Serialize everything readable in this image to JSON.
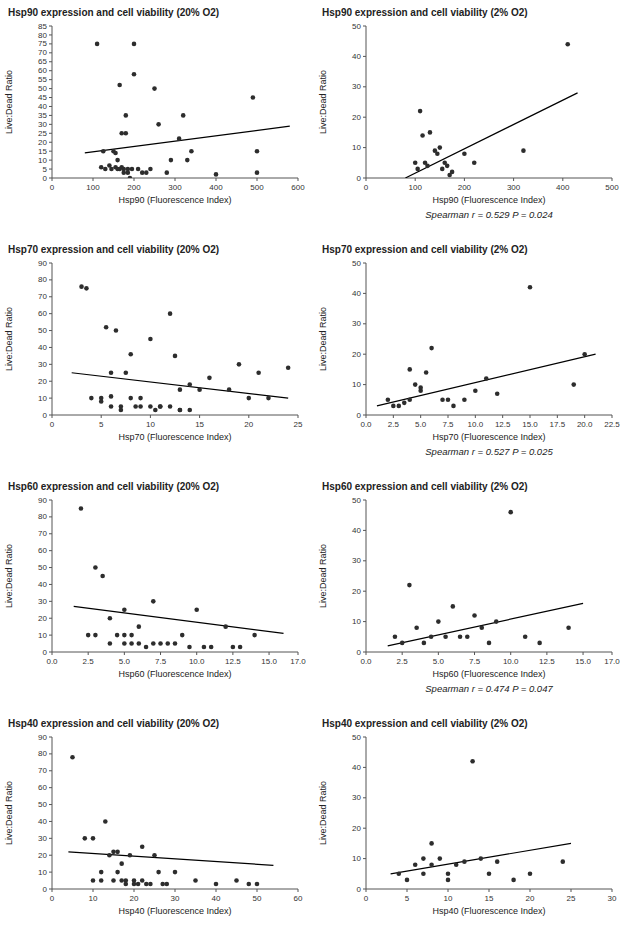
{
  "chart_data": [
    {
      "type": "scatter",
      "title": "Hsp90 expression and cell viability (20% O2)",
      "x_label": "Hsp90 (Fluorescence Index)",
      "y_label": "Live:Dead Ratio",
      "xlim": [
        0,
        600
      ],
      "ylim": [
        0,
        85
      ],
      "xticks": [
        0,
        100,
        200,
        300,
        400,
        500,
        600
      ],
      "yticks": [
        0,
        5,
        10,
        15,
        20,
        25,
        30,
        35,
        40,
        45,
        50,
        55,
        60,
        65,
        70,
        75,
        80,
        85
      ],
      "series": [
        {
          "type": "scatter",
          "color": "#2d2d2d",
          "x": [
            110,
            120,
            125,
            130,
            140,
            145,
            150,
            155,
            155,
            160,
            160,
            165,
            165,
            170,
            170,
            175,
            175,
            180,
            180,
            185,
            185,
            190,
            195,
            200,
            200,
            210,
            220,
            230,
            240,
            250,
            260,
            280,
            290,
            310,
            320,
            330,
            340,
            400,
            490,
            500,
            500
          ],
          "values": [
            75,
            6,
            15,
            5,
            7,
            5,
            15,
            6,
            14,
            5,
            10,
            5,
            52,
            25,
            6,
            5,
            3,
            25,
            35,
            5,
            3,
            0,
            5,
            75,
            58,
            5,
            3,
            3,
            5,
            50,
            30,
            3,
            10,
            22,
            35,
            10,
            15,
            2,
            45,
            15,
            3
          ]
        },
        {
          "type": "line",
          "color": "#000000",
          "x": [
            80,
            580
          ],
          "values": [
            14,
            29
          ]
        }
      ]
    },
    {
      "type": "scatter",
      "title": "Hsp90 expression and cell viability (2% O2)",
      "x_label": "Hsp90 (Fluorescence Index)",
      "y_label": "Live:Dead Ratio",
      "xlim": [
        0,
        500
      ],
      "ylim": [
        0,
        50
      ],
      "xticks": [
        0,
        100,
        200,
        300,
        400,
        500
      ],
      "yticks": [
        0,
        10,
        20,
        30,
        40,
        50
      ],
      "series": [
        {
          "type": "scatter",
          "color": "#2d2d2d",
          "x": [
            100,
            105,
            110,
            115,
            120,
            125,
            130,
            140,
            145,
            150,
            155,
            160,
            165,
            170,
            175,
            200,
            220,
            320,
            410
          ],
          "values": [
            5,
            3,
            22,
            14,
            5,
            4,
            15,
            9,
            8,
            10,
            3,
            5,
            4,
            1,
            2,
            8,
            5,
            9,
            44
          ]
        },
        {
          "type": "line",
          "color": "#000000",
          "x": [
            80,
            430
          ],
          "values": [
            0,
            28
          ]
        }
      ],
      "annotation": "Spearman r = 0.529 P = 0.024"
    },
    {
      "type": "scatter",
      "title": "Hsp70 expression and cell viability (20% O2)",
      "x_label": "Hsp70 (Fluorescence Index)",
      "y_label": "Live:Dead Ratio",
      "xlim": [
        0,
        25
      ],
      "ylim": [
        0,
        90
      ],
      "xticks": [
        0,
        5,
        10,
        15,
        20,
        25
      ],
      "yticks": [
        0,
        10,
        20,
        30,
        40,
        50,
        60,
        70,
        80,
        90
      ],
      "series": [
        {
          "type": "scatter",
          "color": "#2d2d2d",
          "x": [
            3,
            3.5,
            4,
            5,
            5,
            5.5,
            6,
            6,
            6,
            6.5,
            7,
            7,
            7.5,
            8,
            8,
            8.5,
            9,
            9,
            10,
            10,
            10.5,
            11,
            11,
            12,
            12,
            12.5,
            13,
            13,
            13,
            14,
            14,
            15,
            16,
            18,
            19,
            20,
            21,
            22,
            24
          ],
          "values": [
            76,
            75,
            10,
            10,
            8,
            52,
            5,
            11,
            25,
            50,
            5,
            3,
            25,
            10,
            36,
            5,
            10,
            5,
            5,
            45,
            3,
            5,
            5,
            5,
            60,
            35,
            3,
            15,
            3,
            3,
            18,
            15,
            22,
            15,
            30,
            10,
            25,
            10,
            28
          ]
        },
        {
          "type": "line",
          "color": "#000000",
          "x": [
            2,
            24
          ],
          "values": [
            25,
            10
          ]
        }
      ]
    },
    {
      "type": "scatter",
      "title": "Hsp70 expression and cell viability (2% O2)",
      "x_label": "Hsp70 (Fluorescence Index)",
      "y_label": "Live:Dead Ratio",
      "xlim": [
        0,
        22.5
      ],
      "ylim": [
        0,
        50
      ],
      "xticks": [
        {
          "value": 0,
          "label": "0.0"
        },
        2.5,
        {
          "value": 5,
          "label": "5.0"
        },
        7.5,
        {
          "value": 10,
          "label": "10.0"
        },
        12.5,
        {
          "value": 15,
          "label": "15.0"
        },
        17.5,
        {
          "value": 20,
          "label": "20.0"
        },
        22.5
      ],
      "yticks": [
        0,
        10,
        20,
        30,
        40,
        50
      ],
      "series": [
        {
          "type": "scatter",
          "color": "#2d2d2d",
          "x": [
            2,
            2.5,
            3,
            3.5,
            4,
            4,
            4.5,
            5,
            5,
            5.5,
            6,
            7,
            7.5,
            8,
            9,
            10,
            11,
            12,
            15,
            19,
            20
          ],
          "values": [
            5,
            3,
            3,
            4,
            5,
            15,
            10,
            8,
            9,
            14,
            22,
            5,
            5,
            3,
            5,
            8,
            12,
            7,
            42,
            10,
            20
          ]
        },
        {
          "type": "line",
          "color": "#000000",
          "x": [
            1,
            21
          ],
          "values": [
            3,
            20
          ]
        }
      ],
      "annotation": "Spearman r = 0.527 P = 0.025"
    },
    {
      "type": "scatter",
      "title": "Hsp60 expression and cell viability (20% O2)",
      "x_label": "Hsp60 (Fluorescence Index)",
      "y_label": "Live:Dead Ratio",
      "xlim": [
        0,
        17
      ],
      "ylim": [
        0,
        90
      ],
      "xticks": [
        {
          "value": 0,
          "label": "0.0"
        },
        2.5,
        {
          "value": 5,
          "label": "5.0"
        },
        7.5,
        {
          "value": 10,
          "label": "10.0"
        },
        12.5,
        {
          "value": 15,
          "label": "15.0"
        },
        {
          "value": 17,
          "label": "17.0"
        }
      ],
      "yticks": [
        0,
        10,
        20,
        30,
        40,
        50,
        60,
        70,
        80,
        90
      ],
      "series": [
        {
          "type": "scatter",
          "color": "#2d2d2d",
          "x": [
            2,
            2.5,
            3,
            3,
            3.5,
            4,
            4,
            4.5,
            5,
            5,
            5,
            5.5,
            5.5,
            6,
            6,
            6.5,
            7,
            7,
            7.5,
            8,
            8.5,
            9,
            9.5,
            10,
            10.5,
            11,
            12,
            12.5,
            13,
            14
          ],
          "values": [
            85,
            10,
            10,
            50,
            45,
            5,
            20,
            10,
            5,
            25,
            10,
            5,
            10,
            5,
            15,
            3,
            5,
            30,
            5,
            5,
            5,
            10,
            3,
            25,
            3,
            3,
            15,
            3,
            3,
            10
          ]
        },
        {
          "type": "line",
          "color": "#000000",
          "x": [
            1.5,
            16
          ],
          "values": [
            27,
            11
          ]
        }
      ]
    },
    {
      "type": "scatter",
      "title": "Hsp60 expression and cell viability (2% O2)",
      "x_label": "Hsp60 (Fluorescence Index)",
      "y_label": "Live:Dead Ratio",
      "xlim": [
        0,
        17
      ],
      "ylim": [
        0,
        50
      ],
      "xticks": [
        {
          "value": 0,
          "label": "0.0"
        },
        2.5,
        {
          "value": 5,
          "label": "5.0"
        },
        7.5,
        {
          "value": 10,
          "label": "10.0"
        },
        12.5,
        {
          "value": 15,
          "label": "15.0"
        },
        {
          "value": 17,
          "label": "17.0"
        }
      ],
      "yticks": [
        0,
        10,
        20,
        30,
        40,
        50
      ],
      "series": [
        {
          "type": "scatter",
          "color": "#2d2d2d",
          "x": [
            2,
            2.5,
            3,
            3.5,
            4,
            4.5,
            5,
            5.5,
            6,
            6.5,
            7,
            7.5,
            8,
            8.5,
            9,
            10,
            11,
            12,
            14
          ],
          "values": [
            5,
            3,
            22,
            8,
            3,
            5,
            10,
            5,
            15,
            5,
            5,
            12,
            8,
            3,
            10,
            46,
            5,
            3,
            8
          ]
        },
        {
          "type": "line",
          "color": "#000000",
          "x": [
            1.5,
            15
          ],
          "values": [
            2,
            16
          ]
        }
      ],
      "annotation": "Spearman r = 0.474 P = 0.047"
    },
    {
      "type": "scatter",
      "title": "Hsp40 expression and cell viability (20% O2)",
      "x_label": "Hsp40 (Fluorescence Index)",
      "y_label": "Live:Dead Ratio",
      "xlim": [
        0,
        60
      ],
      "ylim": [
        0,
        90
      ],
      "xticks": [
        0,
        10,
        20,
        30,
        40,
        50,
        60
      ],
      "yticks": [
        0,
        10,
        20,
        30,
        40,
        50,
        60,
        70,
        80,
        90
      ],
      "series": [
        {
          "type": "scatter",
          "color": "#2d2d2d",
          "x": [
            5,
            8,
            10,
            10,
            12,
            12,
            13,
            14,
            15,
            15,
            16,
            16,
            17,
            17,
            18,
            18,
            19,
            20,
            20,
            21,
            22,
            22,
            23,
            24,
            25,
            26,
            27,
            28,
            30,
            35,
            40,
            45,
            48,
            50
          ],
          "values": [
            78,
            30,
            30,
            5,
            5,
            10,
            40,
            20,
            22,
            5,
            10,
            22,
            5,
            15,
            5,
            3,
            20,
            5,
            3,
            3,
            25,
            5,
            3,
            3,
            20,
            10,
            3,
            3,
            10,
            5,
            3,
            5,
            3,
            3
          ]
        },
        {
          "type": "line",
          "color": "#000000",
          "x": [
            4,
            54
          ],
          "values": [
            22,
            14
          ]
        }
      ]
    },
    {
      "type": "scatter",
      "title": "Hsp40 expression and cell viability (2% O2)",
      "x_label": "Hsp40 (Fluorescence Index)",
      "y_label": "Live:Dead Ratio",
      "xlim": [
        0,
        30
      ],
      "ylim": [
        0,
        50
      ],
      "xticks": [
        0,
        5,
        10,
        15,
        20,
        25,
        30
      ],
      "yticks": [
        0,
        10,
        20,
        30,
        40,
        50
      ],
      "series": [
        {
          "type": "scatter",
          "color": "#2d2d2d",
          "x": [
            4,
            5,
            6,
            7,
            7,
            8,
            8,
            9,
            10,
            10,
            11,
            12,
            13,
            14,
            15,
            16,
            18,
            20,
            24
          ],
          "values": [
            5,
            3,
            8,
            10,
            5,
            8,
            15,
            10,
            5,
            3,
            8,
            9,
            42,
            10,
            5,
            9,
            3,
            5,
            9
          ]
        },
        {
          "type": "line",
          "color": "#000000",
          "x": [
            3,
            25
          ],
          "values": [
            5,
            15
          ]
        }
      ]
    }
  ]
}
